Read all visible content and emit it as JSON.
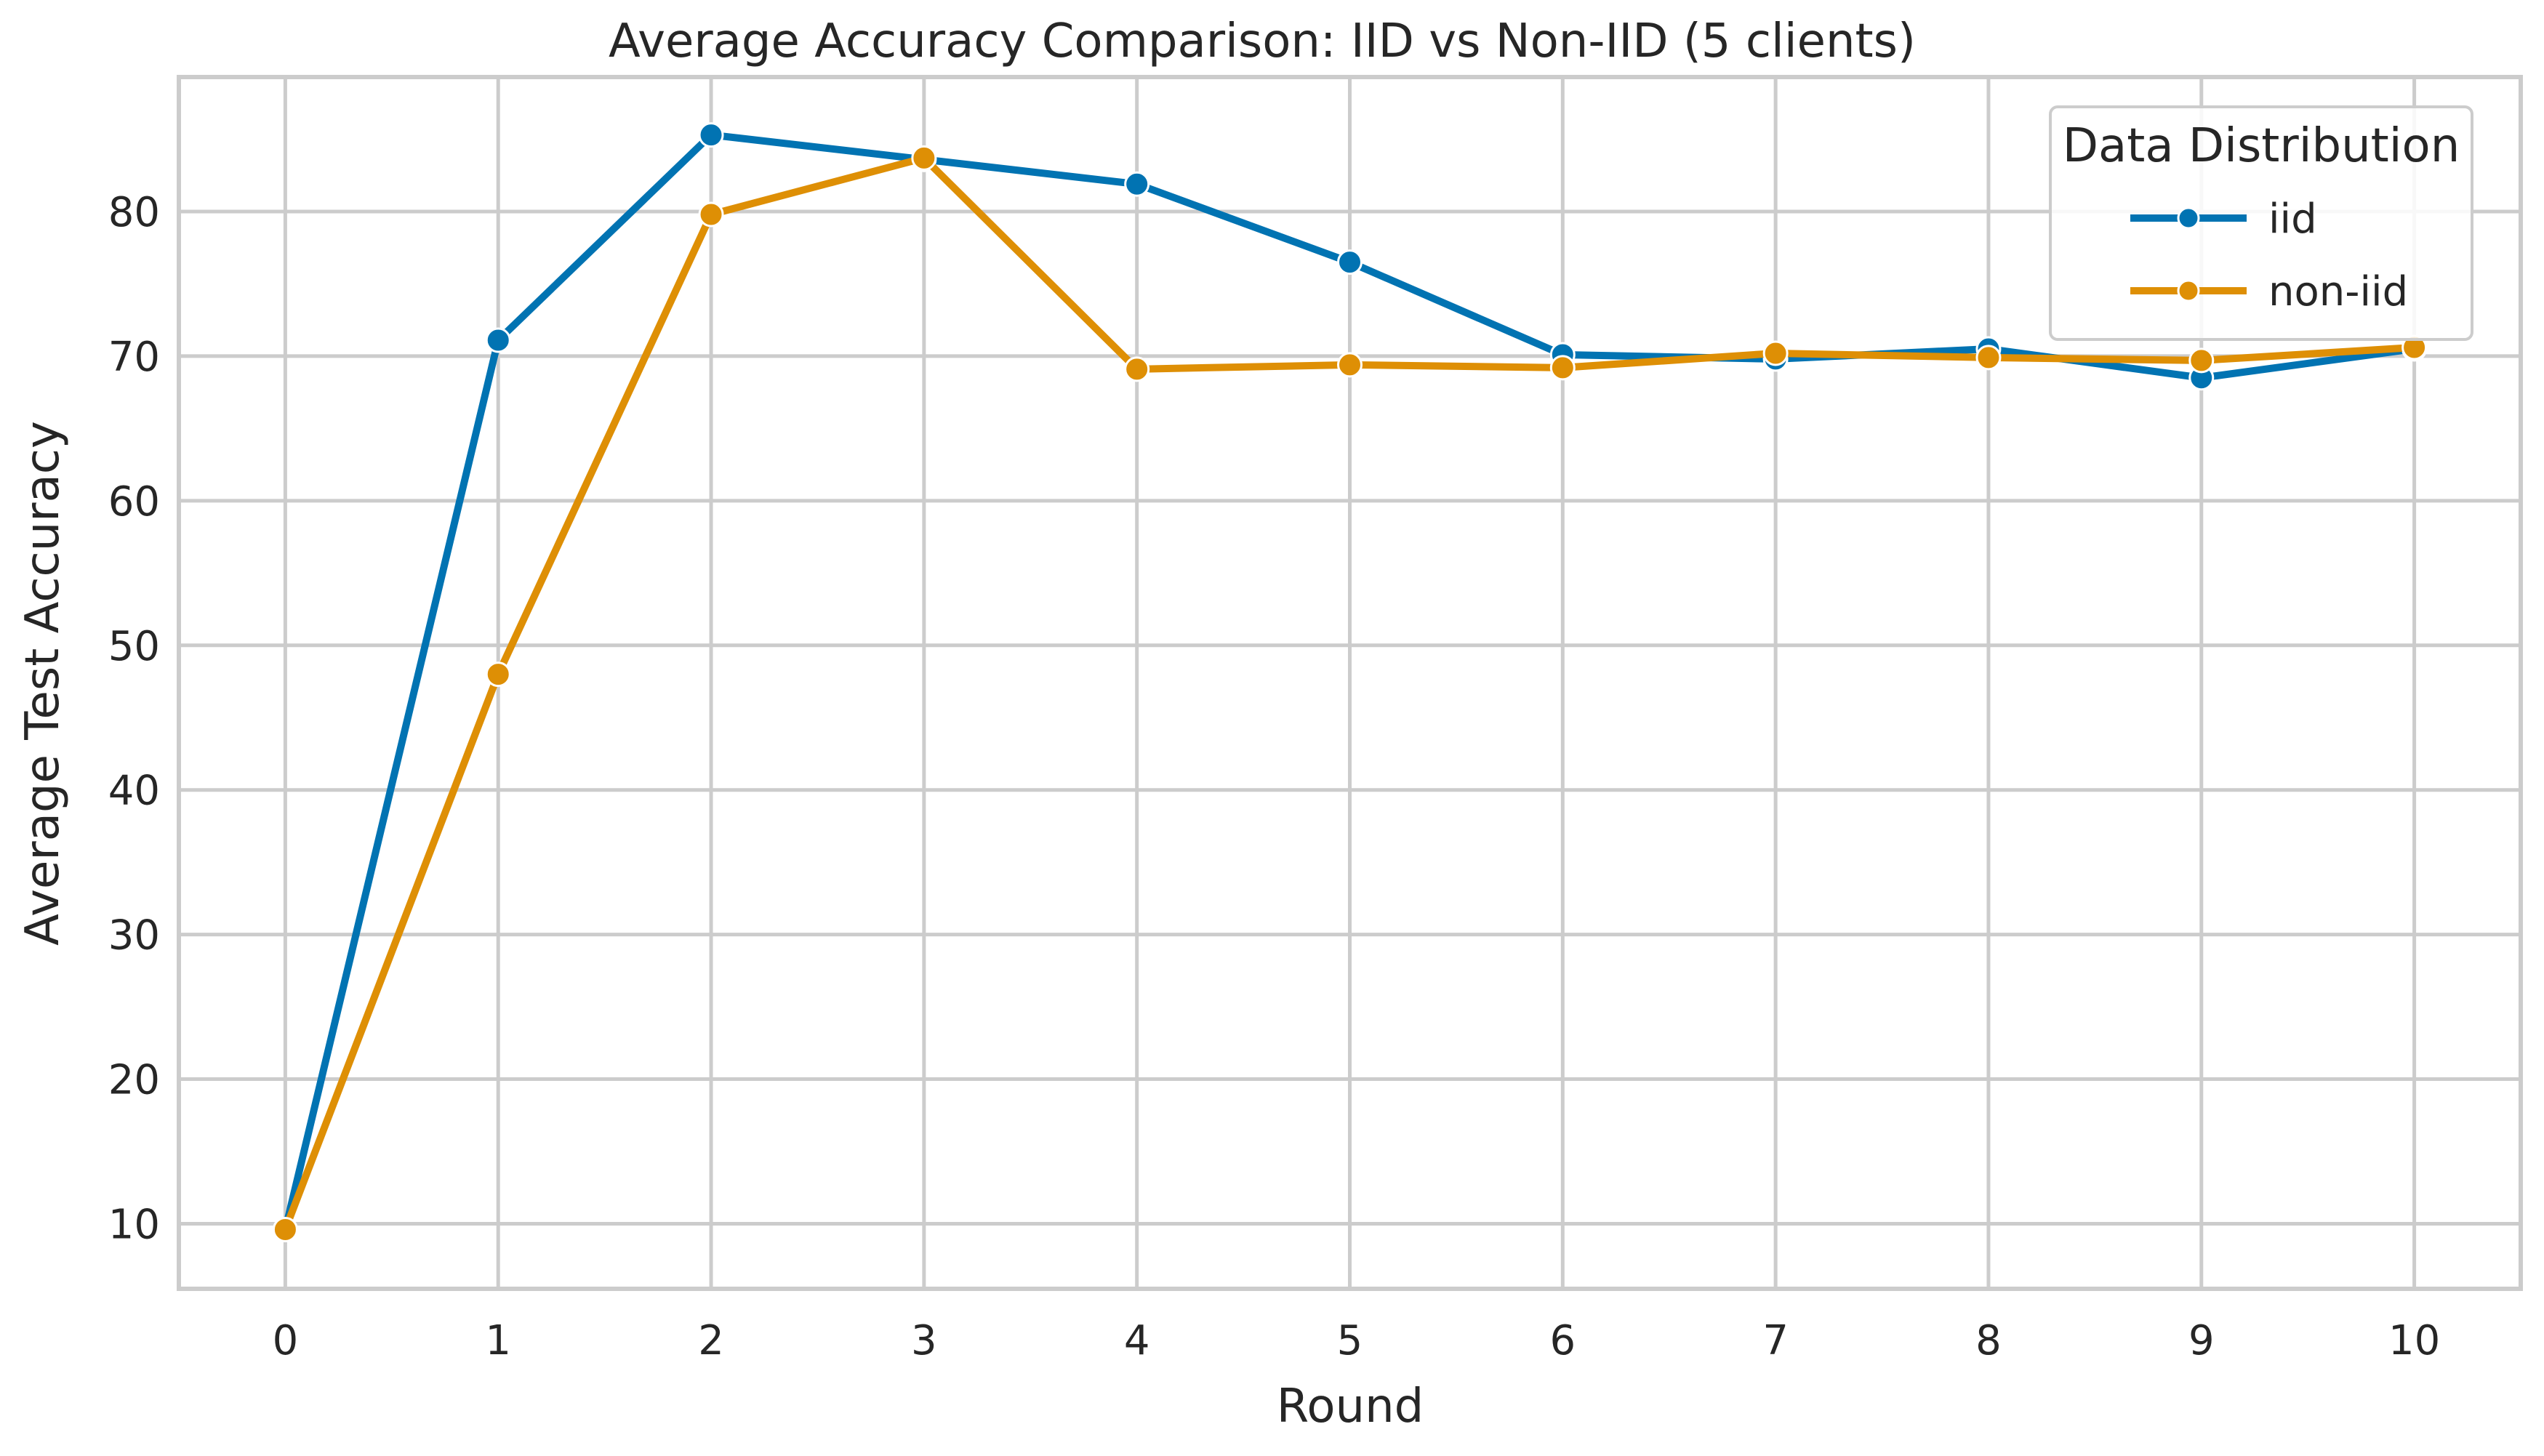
{
  "chart_data": {
    "type": "line",
    "title": "Average Accuracy Comparison: IID vs Non-IID (5 clients)",
    "xlabel": "Round",
    "ylabel": "Average Test Accuracy",
    "x": [
      0,
      1,
      2,
      3,
      4,
      5,
      6,
      7,
      8,
      9,
      10
    ],
    "xticks": [
      "0",
      "1",
      "2",
      "3",
      "4",
      "5",
      "6",
      "7",
      "8",
      "9",
      "10"
    ],
    "yticks": [
      "10",
      "20",
      "30",
      "40",
      "50",
      "60",
      "70",
      "80"
    ],
    "xlim": [
      -0.5,
      10.5
    ],
    "ylim": [
      5.5,
      89.3
    ],
    "grid": true,
    "legend": {
      "title": "Data Distribution",
      "placement": "upper right"
    },
    "series": [
      {
        "name": "iid",
        "color": "#0173b2",
        "values": [
          9.6,
          71.1,
          85.3,
          83.6,
          81.9,
          76.5,
          70.1,
          69.8,
          70.5,
          68.5,
          70.5
        ]
      },
      {
        "name": "non-iid",
        "color": "#de8f05",
        "values": [
          9.6,
          48.0,
          79.8,
          83.7,
          69.1,
          69.4,
          69.2,
          70.2,
          69.9,
          69.7,
          70.6
        ]
      }
    ]
  }
}
